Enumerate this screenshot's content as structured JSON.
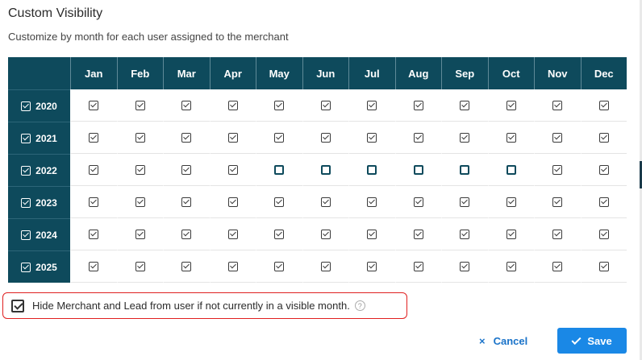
{
  "dialog": {
    "title": "Custom Visibility",
    "subtitle": "Customize by month for each user assigned to the merchant"
  },
  "grid": {
    "months": [
      "Jan",
      "Feb",
      "Mar",
      "Apr",
      "May",
      "Jun",
      "Jul",
      "Aug",
      "Sep",
      "Oct",
      "Nov",
      "Dec"
    ],
    "years": [
      {
        "year": "2020",
        "checked": true,
        "months": [
          true,
          true,
          true,
          true,
          true,
          true,
          true,
          true,
          true,
          true,
          true,
          true
        ]
      },
      {
        "year": "2021",
        "checked": true,
        "months": [
          true,
          true,
          true,
          true,
          true,
          true,
          true,
          true,
          true,
          true,
          true,
          true
        ]
      },
      {
        "year": "2022",
        "checked": true,
        "months": [
          true,
          true,
          true,
          true,
          false,
          false,
          false,
          false,
          false,
          false,
          true,
          true
        ]
      },
      {
        "year": "2023",
        "checked": true,
        "months": [
          true,
          true,
          true,
          true,
          true,
          true,
          true,
          true,
          true,
          true,
          true,
          true
        ]
      },
      {
        "year": "2024",
        "checked": true,
        "months": [
          true,
          true,
          true,
          true,
          true,
          true,
          true,
          true,
          true,
          true,
          true,
          true
        ]
      },
      {
        "year": "2025",
        "checked": true,
        "months": [
          true,
          true,
          true,
          true,
          true,
          true,
          true,
          true,
          true,
          true,
          true,
          true
        ]
      }
    ]
  },
  "hide_option": {
    "label": "Hide Merchant and Lead from user if not currently in a visible month.",
    "checked": true,
    "help_icon": "question-circle-icon"
  },
  "footer": {
    "cancel_label": "Cancel",
    "cancel_icon": "×",
    "save_label": "Save"
  },
  "colors": {
    "header_bg": "#0e4a5c",
    "accent": "#1a88e6",
    "highlight_border": "#e02020"
  }
}
